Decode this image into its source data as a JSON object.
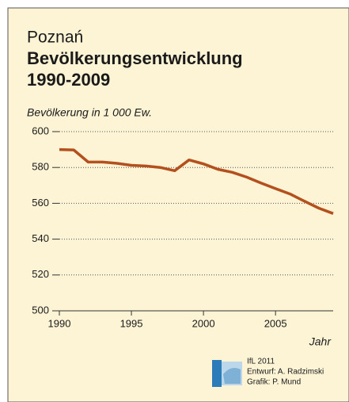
{
  "chart_data": {
    "type": "line",
    "title_lines": [
      "Poznań",
      "Bevölkerungsentwicklung",
      "1990-2009"
    ],
    "y_label": "Bevölkerung in 1 000 Ew.",
    "x_label": "Jahr",
    "x": [
      1990,
      1991,
      1992,
      1993,
      1994,
      1995,
      1996,
      1997,
      1998,
      1999,
      2000,
      2001,
      2002,
      2003,
      2004,
      2005,
      2006,
      2007,
      2008,
      2009
    ],
    "values": [
      590,
      589.8,
      583,
      583,
      582.3,
      581.2,
      580.8,
      580,
      578.2,
      584.2,
      582,
      579,
      577.3,
      574.6,
      571.3,
      568.2,
      565.2,
      561.2,
      557.3,
      554.3
    ],
    "color": "#b4501e",
    "xlim": [
      1990,
      2009
    ],
    "xticks": [
      1990,
      1995,
      2000,
      2005
    ],
    "ylim": [
      500,
      600
    ],
    "yticks": [
      500,
      520,
      540,
      560,
      580,
      600
    ],
    "grid": true
  },
  "credits": [
    "IfL 2011",
    "Entwurf: A. Radzimski",
    "Grafik: P. Mund"
  ]
}
